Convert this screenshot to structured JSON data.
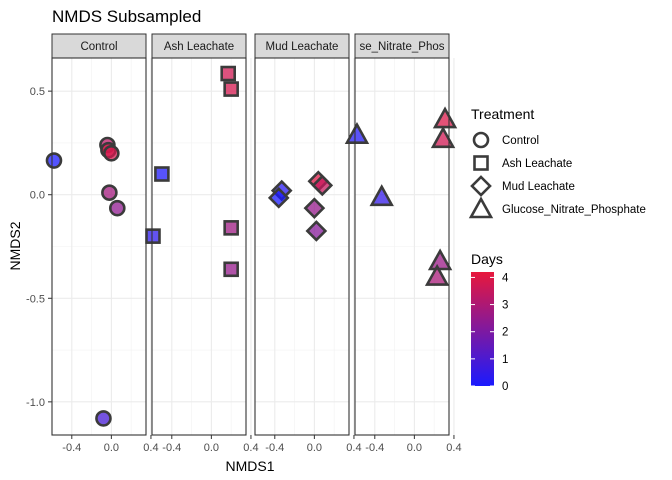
{
  "chart_data": {
    "type": "scatter",
    "title": "NMDS Subsampled",
    "xlabel": "NMDS1",
    "ylabel": "NMDS2",
    "xlim": [
      -0.6,
      0.35
    ],
    "ylim": [
      -1.16,
      0.66
    ],
    "xticks": [
      -0.4,
      0.0,
      0.4
    ],
    "xtick_labels": [
      "-0.4",
      "0.0",
      "0.4"
    ],
    "yticks": [
      0.5,
      0.0,
      -0.5,
      -1.0
    ],
    "ytick_labels": [
      "0.5",
      "0.0",
      "-0.5",
      "-1.0"
    ],
    "grid": true,
    "facets": [
      {
        "label": "Control",
        "shape": "circle",
        "points": [
          {
            "x": -0.58,
            "y": 0.165,
            "days": 0
          },
          {
            "x": -0.04,
            "y": 0.24,
            "days": 3.3
          },
          {
            "x": -0.03,
            "y": 0.215,
            "days": 4
          },
          {
            "x": 0.0,
            "y": 0.2,
            "days": 3.8
          },
          {
            "x": -0.02,
            "y": 0.01,
            "days": 2.8
          },
          {
            "x": 0.06,
            "y": -0.065,
            "days": 2.4
          },
          {
            "x": -0.08,
            "y": -1.08,
            "days": 0.9
          }
        ]
      },
      {
        "label": "Ash Leachate",
        "shape": "square",
        "points": [
          {
            "x": 0.17,
            "y": 0.585,
            "days": 3.7
          },
          {
            "x": 0.2,
            "y": 0.51,
            "days": 3.8
          },
          {
            "x": -0.5,
            "y": 0.1,
            "days": 0.1
          },
          {
            "x": -0.59,
            "y": -0.2,
            "days": 0.4
          },
          {
            "x": 0.2,
            "y": -0.16,
            "days": 2.7
          },
          {
            "x": 0.2,
            "y": -0.36,
            "days": 2.5
          }
        ]
      },
      {
        "label": "Mud Leachate",
        "shape": "diamond",
        "points": [
          {
            "x": -0.33,
            "y": 0.02,
            "days": 0.3
          },
          {
            "x": -0.36,
            "y": -0.015,
            "days": 0
          },
          {
            "x": 0.04,
            "y": 0.065,
            "days": 4
          },
          {
            "x": 0.08,
            "y": 0.045,
            "days": 3.5
          },
          {
            "x": 0.0,
            "y": -0.065,
            "days": 2.5
          },
          {
            "x": 0.02,
            "y": -0.175,
            "days": 2.2
          }
        ]
      },
      {
        "label": "se_Nitrate_Phos",
        "shape": "triangle",
        "points": [
          {
            "x": -0.58,
            "y": 0.29,
            "days": 0.2
          },
          {
            "x": -0.33,
            "y": -0.01,
            "days": 0.5
          },
          {
            "x": 0.31,
            "y": 0.365,
            "days": 3.9
          },
          {
            "x": 0.29,
            "y": 0.27,
            "days": 3.7
          },
          {
            "x": 0.26,
            "y": -0.32,
            "days": 2.6
          },
          {
            "x": 0.23,
            "y": -0.395,
            "days": 2.9
          }
        ]
      }
    ],
    "legend": {
      "placement": "right",
      "treatment_title": "Treatment",
      "treatment_items": [
        {
          "label": "Control",
          "shape": "circle"
        },
        {
          "label": "Ash Leachate",
          "shape": "square"
        },
        {
          "label": "Mud Leachate",
          "shape": "diamond"
        },
        {
          "label": "Glucose_Nitrate_Phosphate",
          "shape": "triangle"
        }
      ],
      "color_title": "Days",
      "color_range": [
        0,
        4.2
      ],
      "color_ticks": [
        "0",
        "1",
        "2",
        "3",
        "4"
      ],
      "color_low": "#1a1aff",
      "color_high": "#e8183c"
    }
  }
}
